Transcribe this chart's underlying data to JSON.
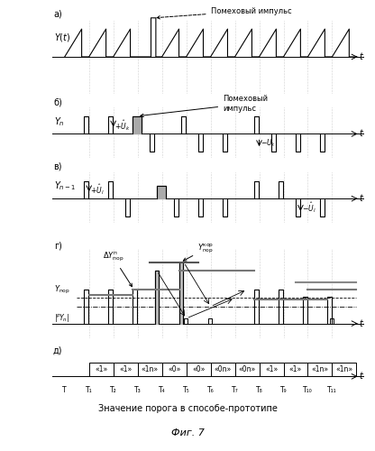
{
  "title": "Фиг. 7",
  "subtitle": "Значение порога в способе-прототипе",
  "fig_width": 4.16,
  "fig_height": 5.0,
  "bg_color": "#ffffff",
  "T": 12,
  "sawtooth_up_periods": [
    0,
    1,
    3,
    4,
    5,
    6,
    7,
    8,
    9,
    10,
    11
  ],
  "sawtooth_noise_period": 2,
  "bit_labels": [
    "«1»",
    "«1»",
    "«1n»",
    "«0»",
    "«0»",
    "«0n»",
    "«0n»",
    "«1»",
    "«1»",
    "«1n»",
    "«1n»"
  ],
  "tick_labels": [
    "T",
    "T₁",
    "T₂",
    "T₃",
    "T₄",
    "T₅",
    "T₆",
    "T₇",
    "T₈",
    "T₉",
    "T₁₀",
    "T₁₁"
  ]
}
